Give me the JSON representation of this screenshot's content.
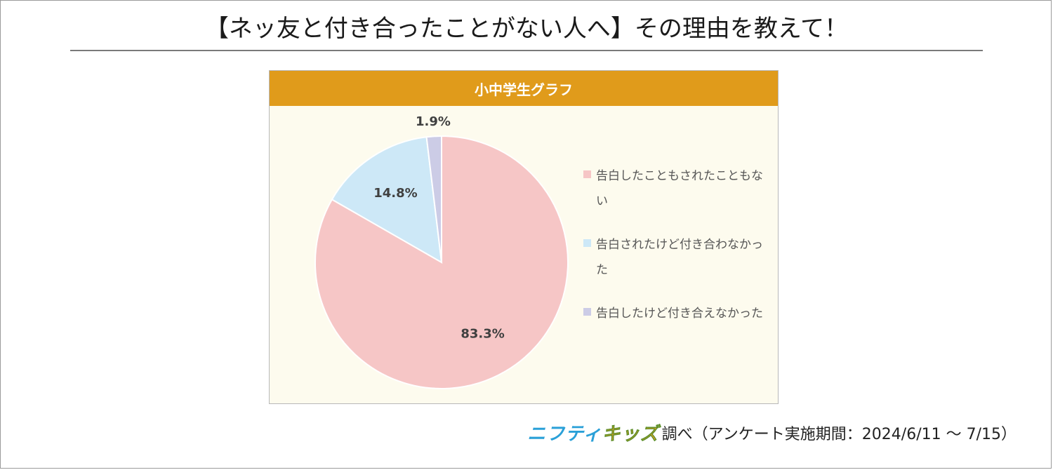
{
  "title": "【ネッ友と付き合ったことがない人へ】その理由を教えて！",
  "chart_header": "小中学生グラフ",
  "chart_data": {
    "type": "pie",
    "title": "小中学生グラフ",
    "slices": [
      {
        "label": "告白したこともされたこともない",
        "value": 83.3,
        "display": "83.3%",
        "color": "#f6c6c6"
      },
      {
        "label": "告白されたけど付き合わなかった",
        "value": 14.8,
        "display": "14.8%",
        "color": "#cde8f7"
      },
      {
        "label": "告白したけど付き合えなかった",
        "value": 1.9,
        "display": "1.9%",
        "color": "#cccce6"
      }
    ],
    "legend_position": "right",
    "start_angle_deg": 90,
    "direction": "clockwise"
  },
  "credit": {
    "logo_part1": "ニフティ",
    "logo_part2": "キッズ",
    "text": "調べ（アンケート実施期間：2024/6/11 ～ 7/15）"
  },
  "colors": {
    "header_bg": "#e09b1b",
    "chart_bg": "#fdfbee"
  }
}
